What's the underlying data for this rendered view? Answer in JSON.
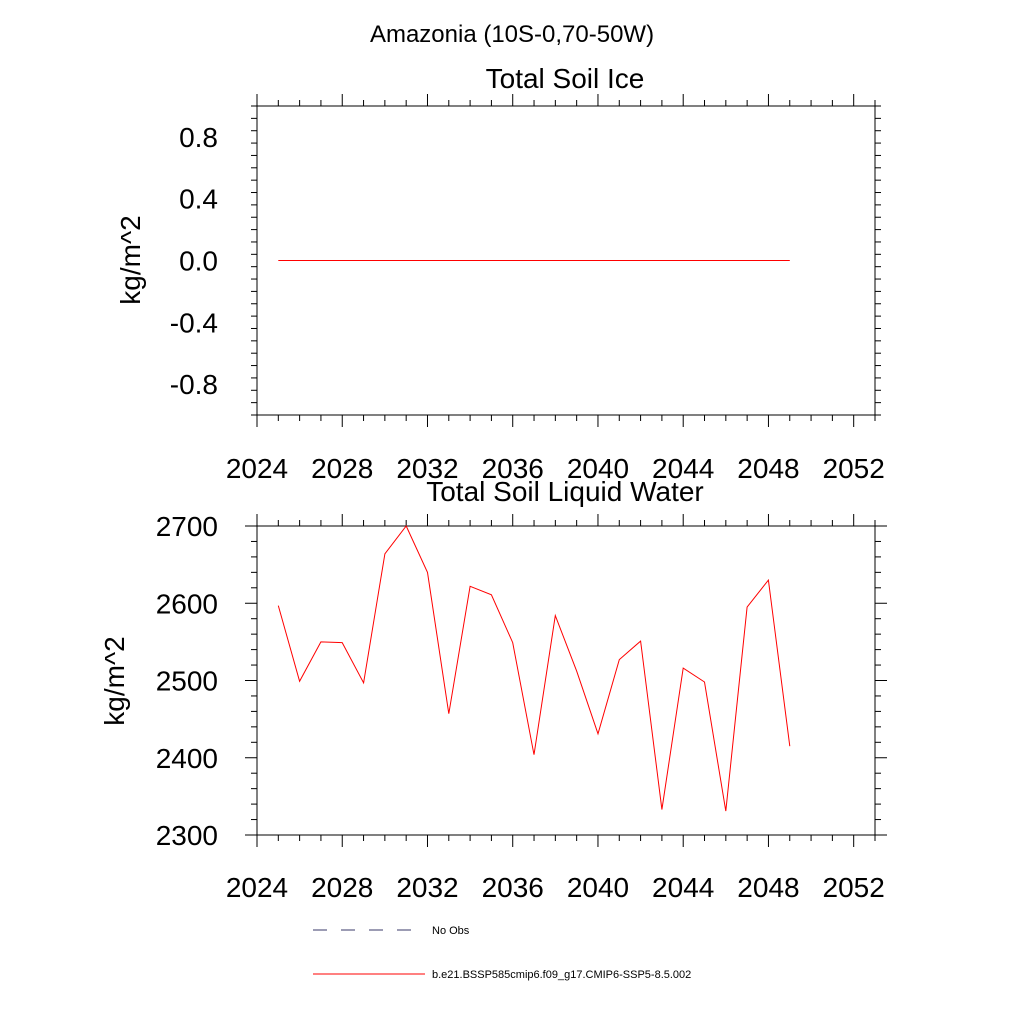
{
  "figure_title": "Amazonia (10S-0,70-50W)",
  "chart_data": [
    {
      "type": "line",
      "title": "Total Soil Ice",
      "xlabel": "",
      "ylabel": "kg/m^2",
      "xlim": [
        2024,
        2053
      ],
      "ylim": [
        -1.0,
        1.0
      ],
      "xticks": [
        "2024",
        "2028",
        "2032",
        "2036",
        "2040",
        "2044",
        "2048",
        "2052"
      ],
      "yticks": [
        "0.8",
        "0.4",
        "0.0",
        "-0.4",
        "-0.8"
      ],
      "series": [
        {
          "color": "#ff0000",
          "x": [
            2025,
            2026,
            2027,
            2028,
            2029,
            2030,
            2031,
            2032,
            2033,
            2034,
            2035,
            2036,
            2037,
            2038,
            2039,
            2040,
            2041,
            2042,
            2043,
            2044,
            2045,
            2046,
            2047,
            2048,
            2049
          ],
          "values": [
            0,
            0,
            0,
            0,
            0,
            0,
            0,
            0,
            0,
            0,
            0,
            0,
            0,
            0,
            0,
            0,
            0,
            0,
            0,
            0,
            0,
            0,
            0,
            0,
            0
          ]
        }
      ]
    },
    {
      "type": "line",
      "title": "Total Soil Liquid Water",
      "xlabel": "",
      "ylabel": "kg/m^2",
      "xlim": [
        2024,
        2053
      ],
      "ylim": [
        2300,
        2700
      ],
      "xticks": [
        "2024",
        "2028",
        "2032",
        "2036",
        "2040",
        "2044",
        "2048",
        "2052"
      ],
      "yticks": [
        "2700",
        "2600",
        "2500",
        "2400",
        "2300"
      ],
      "series": [
        {
          "color": "#ff0000",
          "x": [
            2025,
            2026,
            2027,
            2028,
            2029,
            2030,
            2031,
            2032,
            2033,
            2034,
            2035,
            2036,
            2037,
            2038,
            2039,
            2040,
            2041,
            2042,
            2043,
            2044,
            2045,
            2046,
            2047,
            2048,
            2049
          ],
          "values": [
            2597,
            2499,
            2550,
            2549,
            2497,
            2664,
            2700,
            2640,
            2457,
            2622,
            2611,
            2549,
            2404,
            2584,
            2512,
            2431,
            2527,
            2551,
            2333,
            2516,
            2498,
            2331,
            2595,
            2630,
            2415
          ]
        }
      ]
    }
  ],
  "legend": {
    "items": [
      {
        "label": "No Obs",
        "style": "dashed",
        "color": "#000000"
      },
      {
        "label": "b.e21.BSSP585cmip6.f09_g17.CMIP6-SSP5-8.5.002",
        "style": "solid",
        "color": "#ff0000"
      }
    ]
  }
}
